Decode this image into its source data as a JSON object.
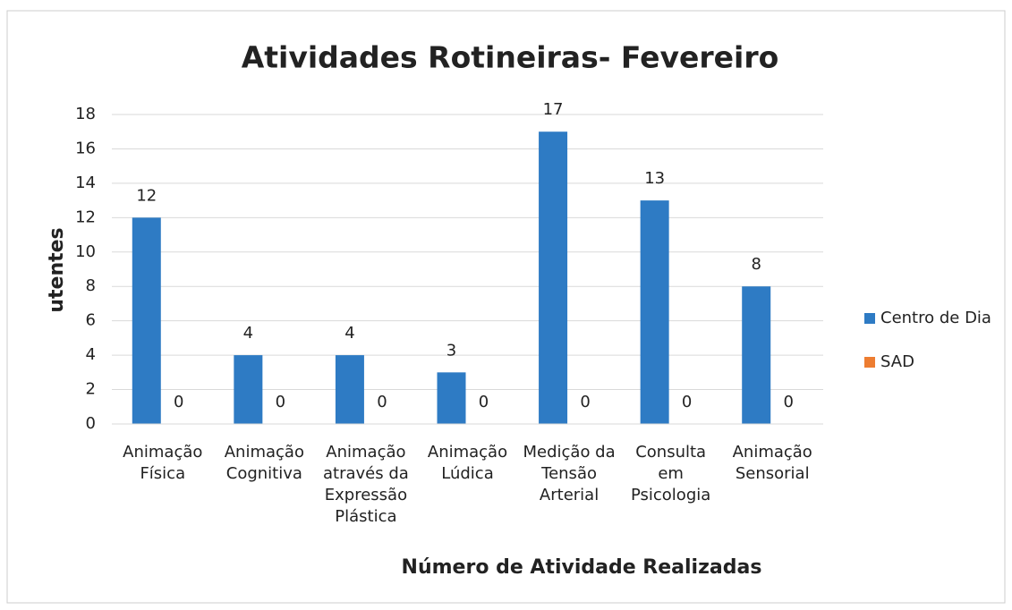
{
  "chart_data": {
    "type": "bar",
    "title": "Atividades Rotineiras- Fevereiro",
    "x_label": "Número de Atividade Realizadas",
    "y_label": "utentes",
    "categories": [
      "Animação Física",
      "Animação Cognitiva",
      "Animação através da Expressão Plástica",
      "Animação Lúdica",
      "Medição da Tensão Arterial",
      "Consulta em Psicologia",
      "Animação Sensorial"
    ],
    "series": [
      {
        "name": "Centro de Dia",
        "color": "#2e7bc4",
        "values": [
          12,
          4,
          4,
          3,
          17,
          13,
          8
        ]
      },
      {
        "name": "SAD",
        "color": "#ed7d31",
        "values": [
          0,
          0,
          0,
          0,
          0,
          0,
          0
        ]
      }
    ],
    "ylim": [
      0,
      18
    ],
    "yticks": [
      0,
      2,
      4,
      6,
      8,
      10,
      12,
      14,
      16,
      18
    ],
    "grid": true,
    "legend": "right"
  }
}
